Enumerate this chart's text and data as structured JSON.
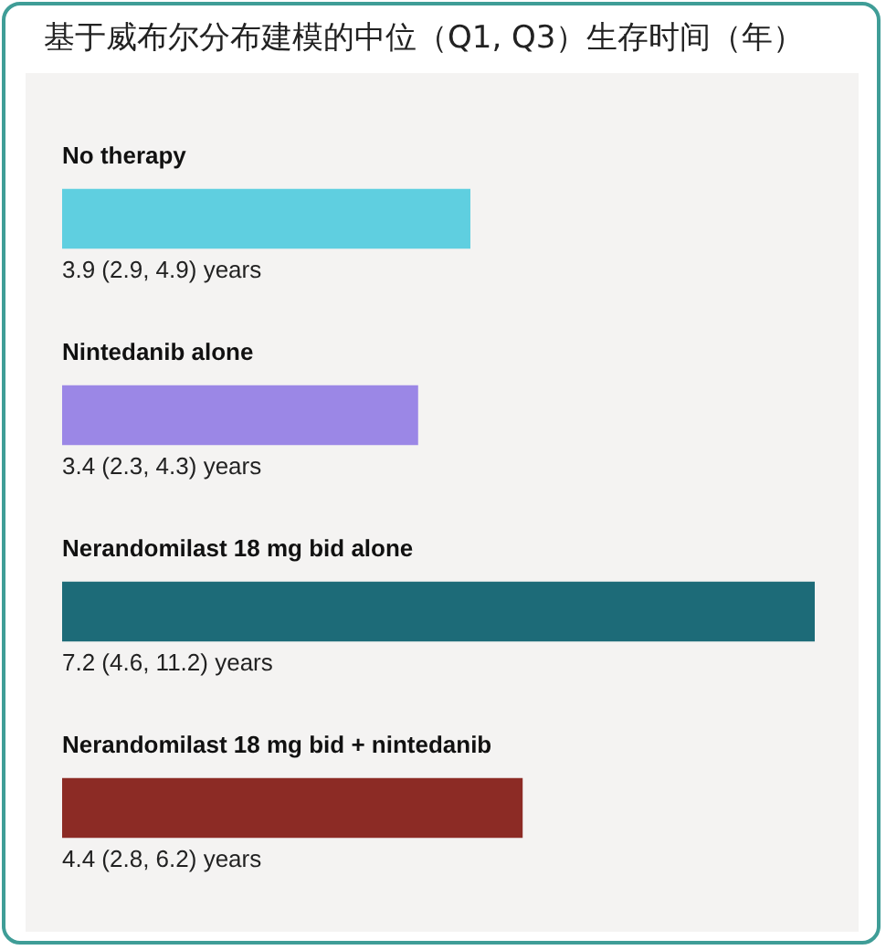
{
  "chart_data": {
    "type": "bar",
    "orientation": "horizontal",
    "title": "基于威布尔分布建模的中位（Q1, Q3）生存时间（年）",
    "categories": [
      "No therapy",
      "Nintedanib alone",
      "Nerandomilast 18 mg bid alone",
      "Nerandomilast 18 mg bid + nintedanib"
    ],
    "values": [
      3.9,
      3.4,
      7.2,
      4.4
    ],
    "colors": [
      "#5fcfe0",
      "#9b87e6",
      "#1d6b78",
      "#8c2b25"
    ],
    "value_labels": [
      "3.9 (2.9, 4.9) years",
      "3.4 (2.3, 4.3) years",
      "7.2 (4.6, 11.2) years",
      "4.4 (2.8, 6.2) years"
    ],
    "tick_labels": "y"
  }
}
